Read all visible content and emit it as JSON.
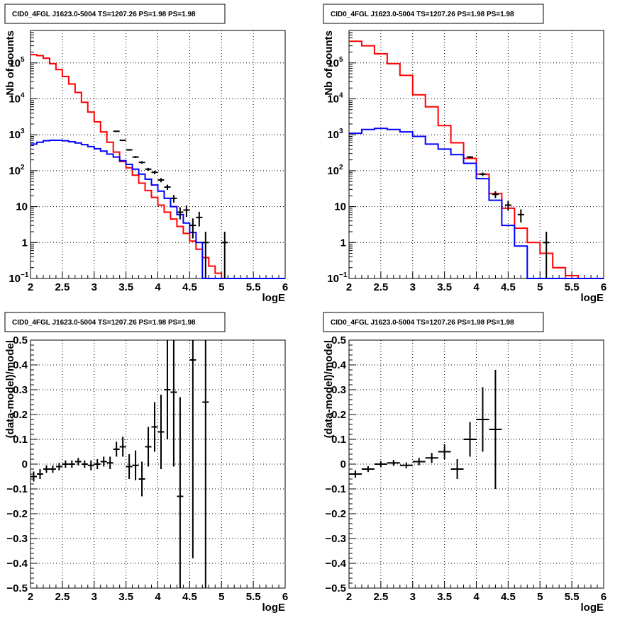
{
  "chart_data": [
    {
      "type": "line",
      "title": "CID0_4FGL J1623.0-5004 TS=1207.26 PS=1.98 PS=1.98",
      "xlabel": "logE",
      "ylabel": "Nb of counts",
      "ylog": true,
      "xlim": [
        2,
        6
      ],
      "ylim": [
        0.1,
        800000
      ],
      "grid": true,
      "xticks": [
        "2",
        "2.5",
        "3",
        "3.5",
        "4",
        "4.5",
        "5",
        "5.5",
        "6"
      ],
      "yticks": [
        {
          "v": 0.1,
          "label": "10",
          "sup": "−1"
        },
        {
          "v": 1,
          "label": "1",
          "sup": ""
        },
        {
          "v": 10,
          "label": "10",
          "sup": ""
        },
        {
          "v": 100,
          "label": "10",
          "sup": "2"
        },
        {
          "v": 1000,
          "label": "10",
          "sup": "3"
        },
        {
          "v": 10000,
          "label": "10",
          "sup": "4"
        },
        {
          "v": 100000,
          "label": "10",
          "sup": "5"
        }
      ],
      "bin_edges": [
        2.0,
        2.1,
        2.2,
        2.3,
        2.4,
        2.5,
        2.6,
        2.7,
        2.8,
        2.9,
        3.0,
        3.1,
        3.2,
        3.3,
        3.4,
        3.5,
        3.6,
        3.7,
        3.8,
        3.9,
        4.0,
        4.1,
        4.2,
        4.3,
        4.4,
        4.5,
        4.6,
        4.7,
        4.8,
        4.9,
        5.0,
        5.1,
        5.2,
        5.3,
        5.4,
        5.5,
        5.6,
        5.7,
        5.8,
        5.9,
        6.0
      ],
      "series": [
        {
          "color": "#ff0000",
          "kind": "hist",
          "values": [
            170000,
            160000,
            135000,
            95000,
            65000,
            42000,
            26000,
            15000,
            8000,
            4300,
            2300,
            1200,
            620,
            330,
            180,
            120,
            75,
            45,
            28,
            18,
            11,
            7,
            4.5,
            2.8,
            1.8,
            1.1,
            0.65,
            0.38,
            0.22,
            0.14,
            0.1,
            0.1,
            0.1,
            0.1,
            0.1,
            0.1,
            0.1,
            0.1,
            0.1,
            0.1
          ]
        },
        {
          "color": "#0000ff",
          "kind": "hist",
          "values": [
            550,
            620,
            680,
            700,
            700,
            680,
            640,
            590,
            530,
            470,
            410,
            350,
            290,
            240,
            190,
            150,
            110,
            80,
            58,
            40,
            27,
            17,
            10,
            6,
            3.5,
            1.9,
            1.0,
            0.1,
            0.1,
            0.1,
            0.1,
            0.1,
            0.1,
            0.1,
            0.1,
            0.1,
            0.1,
            0.1,
            0.1,
            0.1
          ]
        },
        {
          "color": "#000000",
          "kind": "points",
          "x": [
            3.35,
            3.45,
            3.55,
            3.65,
            3.75,
            3.85,
            3.95,
            4.05,
            4.15,
            4.25,
            4.35,
            4.45,
            4.55,
            4.65,
            4.75,
            5.05
          ],
          "y": [
            1250,
            700,
            380,
            240,
            170,
            110,
            90,
            55,
            35,
            17,
            7,
            8,
            3,
            5,
            1,
            1
          ],
          "err": [
            35,
            26,
            19,
            15,
            13,
            10,
            9.5,
            7.4,
            5.9,
            4.1,
            2.6,
            2.8,
            1.7,
            2.2,
            1,
            1
          ]
        }
      ]
    },
    {
      "type": "line",
      "title": "CID0_4FGL J1623.0-5004 TS=1207.26 PS=1.98 PS=1.98",
      "xlabel": "logE",
      "ylabel": "Nb of counts",
      "ylog": true,
      "xlim": [
        2,
        6
      ],
      "ylim": [
        0.1,
        800000
      ],
      "grid": true,
      "xticks": [
        "2",
        "2.5",
        "3",
        "3.5",
        "4",
        "4.5",
        "5",
        "5.5",
        "6"
      ],
      "yticks": [
        {
          "v": 0.1,
          "label": "10",
          "sup": "−1"
        },
        {
          "v": 1,
          "label": "1",
          "sup": ""
        },
        {
          "v": 10,
          "label": "10",
          "sup": ""
        },
        {
          "v": 100,
          "label": "10",
          "sup": "2"
        },
        {
          "v": 1000,
          "label": "10",
          "sup": "3"
        },
        {
          "v": 10000,
          "label": "10",
          "sup": "4"
        },
        {
          "v": 100000,
          "label": "10",
          "sup": "5"
        }
      ],
      "bin_edges": [
        2.0,
        2.2,
        2.4,
        2.6,
        2.8,
        3.0,
        3.2,
        3.4,
        3.6,
        3.8,
        4.0,
        4.2,
        4.4,
        4.6,
        4.8,
        5.0,
        5.2,
        5.4,
        5.6,
        5.8,
        6.0
      ],
      "series": [
        {
          "color": "#ff0000",
          "kind": "hist",
          "values": [
            400000,
            300000,
            180000,
            95000,
            45000,
            13000,
            6000,
            1800,
            600,
            220,
            80,
            23,
            9,
            2.5,
            1,
            0.5,
            0.2,
            0.12,
            0.1,
            0.1
          ]
        },
        {
          "color": "#0000ff",
          "kind": "hist",
          "values": [
            1100,
            1400,
            1500,
            1400,
            1200,
            900,
            550,
            400,
            280,
            160,
            60,
            15,
            3,
            0.8,
            0.1,
            0.1,
            0.1,
            0.1,
            0.1,
            0.1
          ]
        },
        {
          "color": "#000000",
          "kind": "points",
          "x": [
            3.9,
            4.1,
            4.3,
            4.5,
            4.7,
            5.1
          ],
          "y": [
            240,
            80,
            22,
            11,
            6,
            1
          ],
          "err": [
            15.5,
            9,
            4.7,
            3.3,
            2.4,
            1
          ]
        }
      ]
    },
    {
      "type": "scatter",
      "title": "CID0_4FGL J1623.0-5004 TS=1207.26 PS=1.98 PS=1.98",
      "xlabel": "logE",
      "ylabel": "(data-model)/model",
      "ylog": false,
      "xlim": [
        2,
        6
      ],
      "ylim": [
        -0.5,
        0.5
      ],
      "grid": true,
      "xticks": [
        "2",
        "2.5",
        "3",
        "3.5",
        "4",
        "4.5",
        "5",
        "5.5",
        "6"
      ],
      "yticks": [
        {
          "v": -0.5,
          "label": "−0.5"
        },
        {
          "v": -0.4,
          "label": "−0.4"
        },
        {
          "v": -0.3,
          "label": "−0.3"
        },
        {
          "v": -0.2,
          "label": "−0.2"
        },
        {
          "v": -0.1,
          "label": "−0.1"
        },
        {
          "v": 0,
          "label": "0"
        },
        {
          "v": 0.1,
          "label": "0.1"
        },
        {
          "v": 0.2,
          "label": "0.2"
        },
        {
          "v": 0.3,
          "label": "0.3"
        },
        {
          "v": 0.4,
          "label": "0.4"
        },
        {
          "v": 0.5,
          "label": "0.5"
        }
      ],
      "xerr": 0.05,
      "series": [
        {
          "color": "#000000",
          "kind": "points",
          "x": [
            2.05,
            2.15,
            2.25,
            2.35,
            2.45,
            2.55,
            2.65,
            2.75,
            2.85,
            2.95,
            3.05,
            3.15,
            3.25,
            3.35,
            3.45,
            3.55,
            3.65,
            3.75,
            3.85,
            3.95,
            4.05,
            4.15,
            4.25,
            4.35,
            4.55,
            4.75
          ],
          "y": [
            -0.05,
            -0.04,
            -0.02,
            -0.02,
            -0.01,
            0.0,
            0.0,
            0.01,
            0.0,
            -0.005,
            0.0,
            0.01,
            0.005,
            0.06,
            0.07,
            -0.01,
            -0.005,
            -0.06,
            0.07,
            0.15,
            0.13,
            0.3,
            0.29,
            -0.13,
            0.42,
            0.25
          ],
          "err": [
            0.02,
            0.02,
            0.015,
            0.015,
            0.015,
            0.015,
            0.015,
            0.015,
            0.015,
            0.02,
            0.02,
            0.02,
            0.025,
            0.03,
            0.04,
            0.05,
            0.06,
            0.07,
            0.08,
            0.1,
            0.15,
            0.2,
            0.3,
            0.4,
            0.8,
            1.0
          ]
        }
      ]
    },
    {
      "type": "scatter",
      "title": "CID0_4FGL J1623.0-5004 TS=1207.26 PS=1.98 PS=1.98",
      "xlabel": "logE",
      "ylabel": "(data-model)/model",
      "ylog": false,
      "xlim": [
        2,
        6
      ],
      "ylim": [
        -0.5,
        0.5
      ],
      "grid": true,
      "xticks": [
        "2",
        "2.5",
        "3",
        "3.5",
        "4",
        "4.5",
        "5",
        "5.5",
        "6"
      ],
      "yticks": [
        {
          "v": -0.5,
          "label": "−0.5"
        },
        {
          "v": -0.4,
          "label": "−0.4"
        },
        {
          "v": -0.3,
          "label": "−0.3"
        },
        {
          "v": -0.2,
          "label": "−0.2"
        },
        {
          "v": -0.1,
          "label": "−0.1"
        },
        {
          "v": 0,
          "label": "0"
        },
        {
          "v": 0.1,
          "label": "0.1"
        },
        {
          "v": 0.2,
          "label": "0.2"
        },
        {
          "v": 0.3,
          "label": "0.3"
        },
        {
          "v": 0.4,
          "label": "0.4"
        },
        {
          "v": 0.5,
          "label": "0.5"
        }
      ],
      "xerr": 0.1,
      "series": [
        {
          "color": "#000000",
          "kind": "points",
          "x": [
            2.1,
            2.3,
            2.5,
            2.7,
            2.9,
            3.1,
            3.3,
            3.5,
            3.7,
            3.9,
            4.1,
            4.3
          ],
          "y": [
            -0.04,
            -0.02,
            0.0,
            0.005,
            -0.005,
            0.01,
            0.025,
            0.05,
            -0.02,
            0.1,
            0.18,
            0.14
          ],
          "err": [
            0.015,
            0.012,
            0.012,
            0.012,
            0.012,
            0.015,
            0.02,
            0.03,
            0.04,
            0.07,
            0.13,
            0.24
          ]
        }
      ]
    }
  ]
}
